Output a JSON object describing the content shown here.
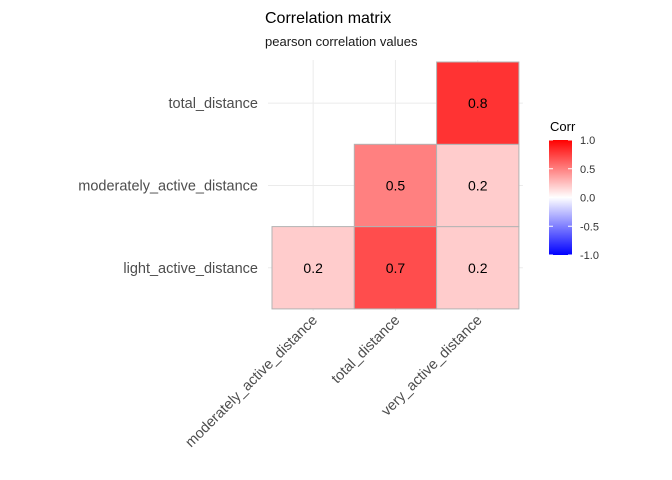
{
  "chart_data": {
    "type": "heatmap",
    "title": "Correlation matrix",
    "subtitle": "pearson correlation values",
    "x_categories": [
      "moderately_active_distance",
      "total_distance",
      "very_active_distance"
    ],
    "y_categories": [
      "light_active_distance",
      "moderately_active_distance",
      "total_distance"
    ],
    "cells": [
      {
        "x": "moderately_active_distance",
        "y": "light_active_distance",
        "value": 0.2,
        "label": "0.2"
      },
      {
        "x": "total_distance",
        "y": "light_active_distance",
        "value": 0.7,
        "label": "0.7"
      },
      {
        "x": "very_active_distance",
        "y": "light_active_distance",
        "value": 0.2,
        "label": "0.2"
      },
      {
        "x": "total_distance",
        "y": "moderately_active_distance",
        "value": 0.5,
        "label": "0.5"
      },
      {
        "x": "very_active_distance",
        "y": "moderately_active_distance",
        "value": 0.2,
        "label": "0.2"
      },
      {
        "x": "very_active_distance",
        "y": "total_distance",
        "value": 0.8,
        "label": "0.8"
      }
    ],
    "legend": {
      "title": "Corr",
      "placement": "right",
      "range": [
        -1,
        1
      ],
      "ticks": [
        "1.0",
        "0.5",
        "0.0",
        "-0.5",
        "-1.0"
      ],
      "tick_values": [
        1.0,
        0.5,
        0.0,
        -0.5,
        -1.0
      ],
      "colors": {
        "low": "#0000ff",
        "mid": "#ffffff",
        "high": "#ff0000"
      }
    },
    "grid": true
  }
}
